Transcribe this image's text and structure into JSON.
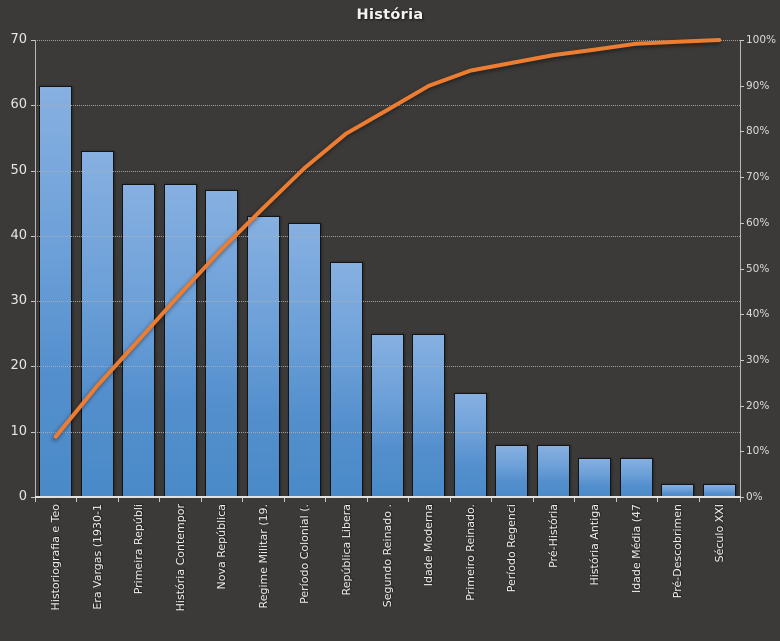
{
  "chart_data": {
    "type": "pareto",
    "title": "História",
    "legend": "none",
    "grid": "horizontal-dotted",
    "categories": [
      "Historiografia e Teo",
      "Era Vargas (1930-1",
      "Primeira Repúbli",
      "História Contempor",
      "Nova República",
      "Regime Militar (19.",
      "Período Colonial (.",
      "República Libera",
      "Segundo Reinado .",
      "Idade Moderna",
      "Primeiro Reinado.",
      "Período Regenci",
      "Pré-História",
      "História Antiga",
      "Idade Média (47",
      "Pré-Descobrimen",
      "Século XXI"
    ],
    "series": [
      {
        "name": "bar-series",
        "type": "bar",
        "axis": "left",
        "values": [
          63,
          53,
          48,
          48,
          47,
          43,
          42,
          36,
          25,
          25,
          16,
          8,
          8,
          6,
          6,
          2,
          2
        ]
      },
      {
        "name": "cumulative-line-series",
        "type": "line",
        "axis": "right",
        "values": [
          13.2,
          24.3,
          34.3,
          44.4,
          54.2,
          63.2,
          72.0,
          79.5,
          84.7,
          90.0,
          93.3,
          95.0,
          96.7,
          97.9,
          99.2,
          99.6,
          100.0
        ]
      }
    ],
    "left_axis": {
      "min": 0,
      "max": 70,
      "step": 10,
      "tick_labels": [
        "0",
        "10",
        "20",
        "30",
        "40",
        "50",
        "60",
        "70"
      ]
    },
    "right_axis": {
      "min": 0,
      "max": 100,
      "step": 10,
      "tick_labels": [
        "0%",
        "10%",
        "20%",
        "30%",
        "40%",
        "50%",
        "60%",
        "70%",
        "80%",
        "90%",
        "100%"
      ]
    },
    "colors": {
      "background": "#3b3a39",
      "bar_fill_top": "#87b0e1",
      "bar_fill_bottom": "#4a8ac8",
      "bar_border": "#141414",
      "line": "#ed7d31",
      "gridline": "#b2b0ae",
      "axis_line": "#b9b7b5",
      "text": "#efedec"
    }
  }
}
